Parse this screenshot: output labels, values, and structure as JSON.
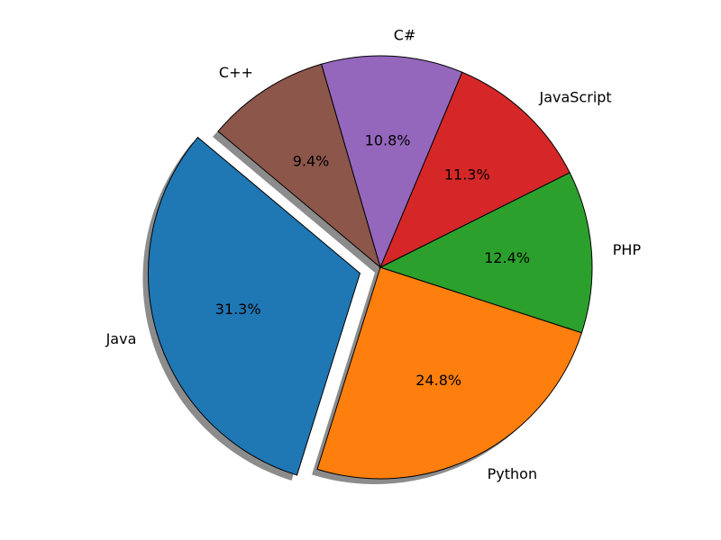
{
  "chart_data": {
    "type": "pie",
    "title": "",
    "categories": [
      "Java",
      "Python",
      "PHP",
      "JavaScript",
      "C#",
      "C++"
    ],
    "values": [
      31.3,
      24.8,
      12.4,
      11.3,
      10.8,
      9.4
    ],
    "labels_pct": [
      "31.3%",
      "24.8%",
      "12.4%",
      "11.3%",
      "10.8%",
      "9.4%"
    ],
    "colors": [
      "#1f77b4",
      "#ff7f0e",
      "#2ca02c",
      "#d62728",
      "#9467bd",
      "#8c564b"
    ],
    "explode": [
      0.1,
      0,
      0,
      0,
      0,
      0
    ],
    "start_angle": 140,
    "shadow": true,
    "legend": null
  }
}
